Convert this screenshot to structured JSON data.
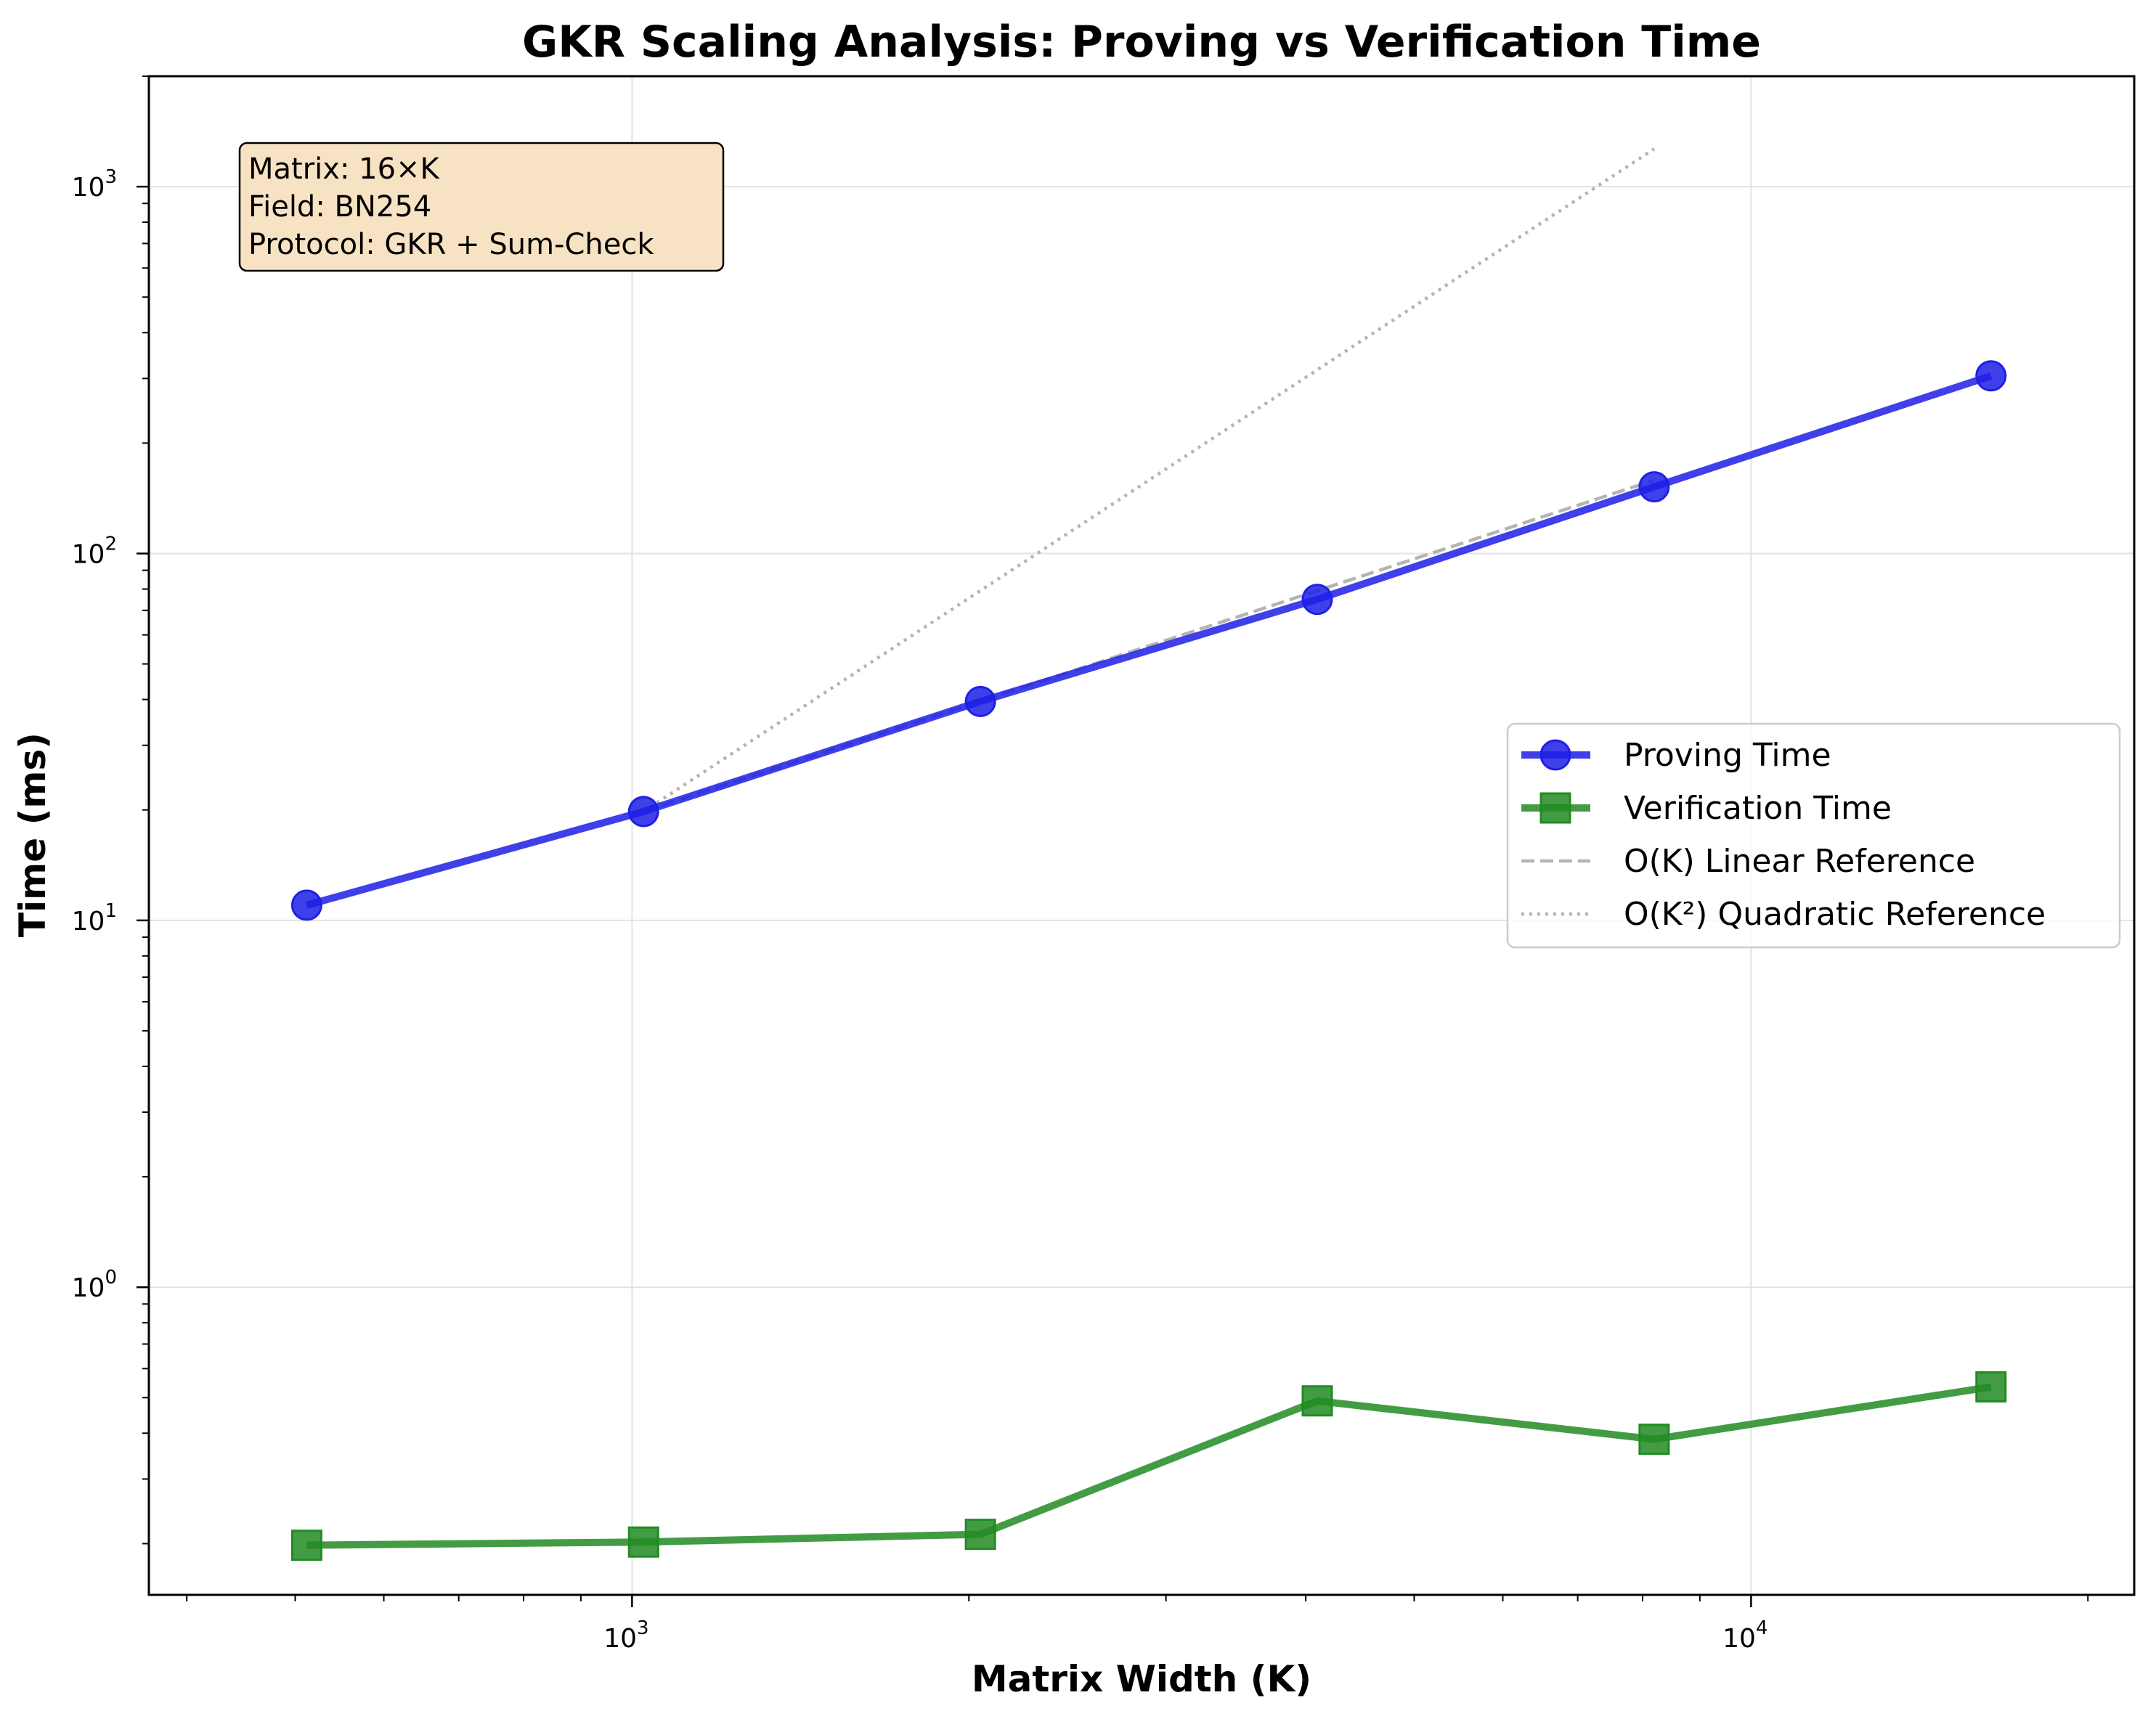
{
  "chart_data": {
    "type": "line",
    "title": "GKR Scaling Analysis: Proving vs Verification Time",
    "xlabel": "Matrix Width (K)",
    "ylabel": "Time (ms)",
    "x_scale": "log",
    "y_scale": "log",
    "xlim": [
      370,
      22000
    ],
    "ylim": [
      0.145,
      2000
    ],
    "grid": true,
    "x_ticks": [
      {
        "value": 1000,
        "base": "10",
        "exp": "3"
      },
      {
        "value": 10000,
        "base": "10",
        "exp": "4"
      }
    ],
    "y_ticks": [
      {
        "value": 1,
        "base": "10",
        "exp": "0"
      },
      {
        "value": 10,
        "base": "10",
        "exp": "1"
      },
      {
        "value": 100,
        "base": "10",
        "exp": "2"
      },
      {
        "value": 1000,
        "base": "10",
        "exp": "3"
      }
    ],
    "series": [
      {
        "name": "Proving Time",
        "color": "#1f1fe6",
        "marker": "circle",
        "line": "solid",
        "x": [
          512,
          1024,
          2048,
          4096,
          8192,
          16384
        ],
        "y": [
          11.0,
          19.8,
          39.5,
          75.0,
          152.0,
          305.0
        ]
      },
      {
        "name": "Verification Time",
        "color": "#228b22",
        "marker": "square",
        "line": "solid",
        "x": [
          512,
          1024,
          2048,
          4096,
          8192,
          16384
        ],
        "y": [
          0.198,
          0.202,
          0.212,
          0.49,
          0.385,
          0.535
        ]
      },
      {
        "name": "O(K) Linear Reference",
        "color": "#b4b4b4",
        "marker": "none",
        "line": "dashed",
        "x": [
          1024,
          2048,
          4096,
          8192
        ],
        "y": [
          19.8,
          39.6,
          79.2,
          158.4
        ]
      },
      {
        "name": "O(K²) Quadratic Reference",
        "color": "#b4b4b4",
        "marker": "none",
        "line": "dotted",
        "x": [
          1024,
          2048,
          4096,
          8192
        ],
        "y": [
          19.8,
          79.2,
          316.8,
          1267.2
        ]
      }
    ],
    "legend_position": "center-right",
    "annotation": {
      "lines": [
        "Matrix: 16×K",
        "Field: BN254",
        "Protocol: GKR + Sum-Check"
      ],
      "position": "top-left",
      "background": "#f7e3c3"
    }
  }
}
